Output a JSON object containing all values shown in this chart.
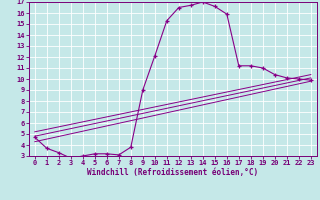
{
  "xlabel": "Windchill (Refroidissement éolien,°C)",
  "bg_color": "#c5e8e8",
  "line_color": "#880088",
  "grid_color": "#ffffff",
  "xlim": [
    -0.5,
    23.5
  ],
  "ylim": [
    3,
    17
  ],
  "xticks": [
    0,
    1,
    2,
    3,
    4,
    5,
    6,
    7,
    8,
    9,
    10,
    11,
    12,
    13,
    14,
    15,
    16,
    17,
    18,
    19,
    20,
    21,
    22,
    23
  ],
  "yticks": [
    3,
    4,
    5,
    6,
    7,
    8,
    9,
    10,
    11,
    12,
    13,
    14,
    15,
    16,
    17
  ],
  "curve1_x": [
    0,
    1,
    2,
    3,
    4,
    5,
    6,
    7,
    8,
    9,
    10,
    11,
    12,
    13,
    14,
    15,
    16,
    17,
    18,
    19,
    20,
    21,
    22,
    23
  ],
  "curve1_y": [
    4.7,
    3.7,
    3.3,
    2.8,
    3.0,
    3.2,
    3.2,
    3.1,
    3.8,
    9.0,
    12.1,
    15.3,
    16.5,
    16.7,
    17.0,
    16.6,
    15.9,
    11.2,
    11.2,
    11.0,
    10.4,
    10.1,
    10.0,
    9.9
  ],
  "line2_x": [
    0,
    23
  ],
  "line2_y": [
    4.8,
    10.1
  ],
  "line3_x": [
    0,
    23
  ],
  "line3_y": [
    5.2,
    10.4
  ],
  "line4_x": [
    0,
    23
  ],
  "line4_y": [
    4.3,
    9.8
  ],
  "tick_color": "#770077",
  "label_fontsize": 5.0,
  "xlabel_fontsize": 5.5
}
